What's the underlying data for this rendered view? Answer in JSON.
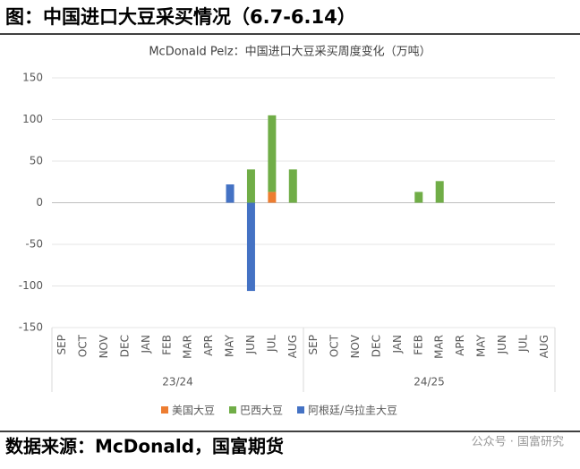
{
  "header": {
    "title": "图：中国进口大豆采买情况（6.7-6.14）"
  },
  "chart_data": {
    "type": "bar",
    "stacked": true,
    "title": "McDonald Pelz：中国进口大豆采买周度变化（万吨）",
    "categories": [
      "SEP",
      "OCT",
      "NOV",
      "DEC",
      "JAN",
      "FEB",
      "MAR",
      "APR",
      "MAY",
      "JUN",
      "JUL",
      "AUG",
      "SEP",
      "OCT",
      "NOV",
      "DEC",
      "JAN",
      "FEB",
      "MAR",
      "APR",
      "MAY",
      "JUN",
      "JUL",
      "AUG"
    ],
    "category_groups": [
      "23/24",
      "24/25"
    ],
    "series": [
      {
        "name": "美国大豆",
        "color": "#ed7d31",
        "values": [
          null,
          null,
          null,
          null,
          null,
          null,
          null,
          null,
          null,
          null,
          13,
          null,
          null,
          null,
          null,
          null,
          null,
          null,
          null,
          null,
          null,
          null,
          null,
          null
        ]
      },
      {
        "name": "巴西大豆",
        "color": "#70ad47",
        "values": [
          null,
          null,
          null,
          null,
          null,
          null,
          null,
          null,
          null,
          40,
          92,
          40,
          null,
          null,
          null,
          null,
          null,
          13,
          26,
          null,
          null,
          null,
          null,
          null
        ]
      },
      {
        "name": "阿根廷/乌拉圭大豆",
        "color": "#4472c4",
        "values": [
          null,
          null,
          null,
          null,
          null,
          null,
          null,
          null,
          22,
          -106,
          null,
          null,
          null,
          null,
          null,
          null,
          null,
          null,
          null,
          null,
          null,
          null,
          null,
          null
        ]
      }
    ],
    "ylim": [
      -150,
      150
    ],
    "yticks": [
      -150,
      -100,
      -50,
      0,
      50,
      100,
      150
    ],
    "grid": true,
    "legend": "bottom"
  },
  "footer": {
    "source": "数据来源：McDonald，国富期货",
    "watermark": "公众号 · 国富研究"
  }
}
